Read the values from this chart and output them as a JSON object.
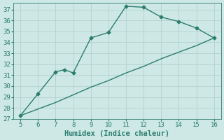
{
  "xlabel": "Humidex (Indice chaleur)",
  "background_color": "#cde8e5",
  "line_color": "#2d7d6e",
  "tick_color": "#2d7d6e",
  "x_upper": [
    5,
    6,
    7,
    7.5,
    8,
    9,
    10,
    11,
    12,
    13,
    14,
    15,
    16
  ],
  "y_upper": [
    27.3,
    29.3,
    31.3,
    31.5,
    31.2,
    34.4,
    34.9,
    37.3,
    37.2,
    36.3,
    35.9,
    35.3,
    34.4
  ],
  "x_lower": [
    5,
    6,
    7,
    8,
    9,
    10,
    11,
    12,
    13,
    14,
    15,
    16
  ],
  "y_lower": [
    27.3,
    27.9,
    28.5,
    29.2,
    29.9,
    30.5,
    31.2,
    31.8,
    32.5,
    33.1,
    33.7,
    34.4
  ],
  "xlim": [
    4.6,
    16.4
  ],
  "ylim": [
    27,
    37.6
  ],
  "xticks": [
    5,
    6,
    7,
    8,
    9,
    10,
    11,
    12,
    13,
    14,
    15,
    16
  ],
  "yticks": [
    27,
    28,
    29,
    30,
    31,
    32,
    33,
    34,
    35,
    36,
    37
  ],
  "grid_color": "#b0ceca",
  "markersize": 2.5,
  "linewidth": 1.0,
  "xlabel_fontsize": 7.5,
  "tick_fontsize": 6.5
}
